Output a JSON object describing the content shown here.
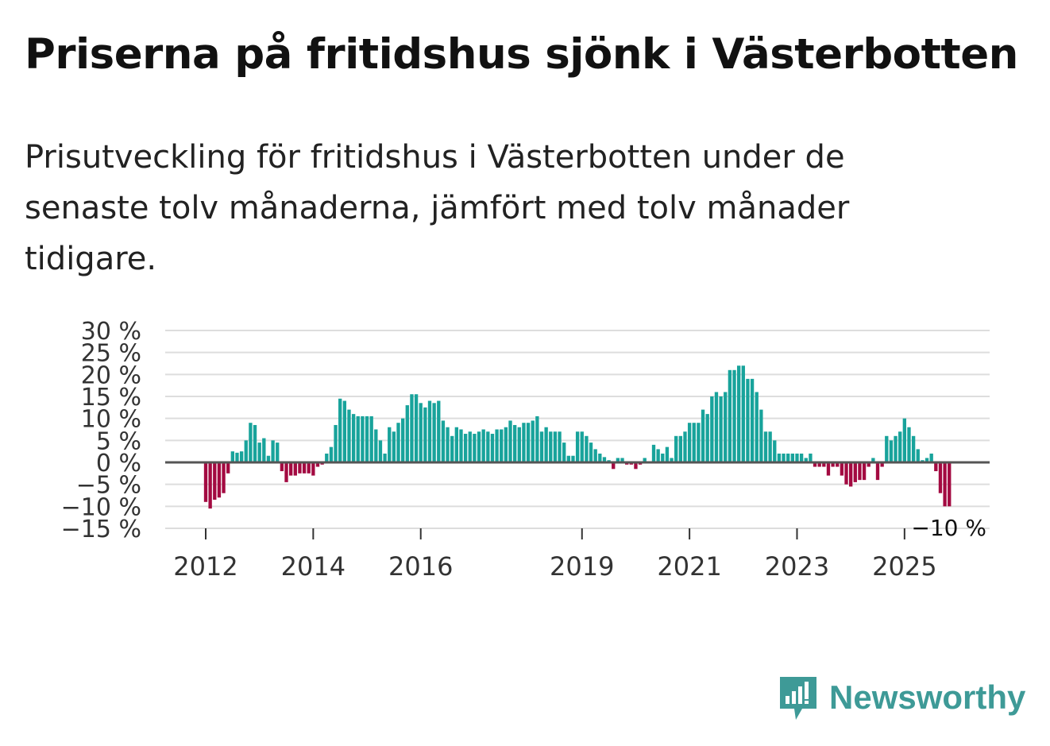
{
  "title": "Priserna på fritidshus sjönk i Västerbotten",
  "subtitle": "Prisutveckling för fritidshus i Västerbotten under de senaste tolv månaderna, jämfört med tolv månader tidigare.",
  "brand": {
    "name": "Newsworthy",
    "icon": "newsworthy-logo-icon"
  },
  "colors": {
    "positive": "#18a39b",
    "negative": "#a30a41",
    "zero_line": "#555555",
    "grid": "#dddddd"
  },
  "chart_data": {
    "type": "bar",
    "title": "Priserna på fritidshus sjönk i Västerbotten",
    "xlabel": "",
    "ylabel": "",
    "ylim": [
      -15,
      30
    ],
    "grid": true,
    "y_ticks": [
      30,
      25,
      20,
      15,
      10,
      5,
      0,
      -5,
      -10,
      -15
    ],
    "y_tick_labels": [
      "30 %",
      "25 %",
      "20 %",
      "15 %",
      "10 %",
      "5 %",
      "0 %",
      "−5 %",
      "−10 %",
      "−15 %"
    ],
    "x_ticks": [
      {
        "label": "2012",
        "index": 0
      },
      {
        "label": "2014",
        "index": 24
      },
      {
        "label": "2016",
        "index": 48
      },
      {
        "label": "2019",
        "index": 84
      },
      {
        "label": "2021",
        "index": 108
      },
      {
        "label": "2023",
        "index": 132
      },
      {
        "label": "2025",
        "index": 156
      }
    ],
    "end_label": "−10 %",
    "series": [
      {
        "name": "Prisutveckling (%)",
        "values": [
          -9,
          -10.5,
          -8.5,
          -8,
          -7,
          -2.5,
          2.5,
          2.2,
          2.5,
          5,
          9,
          8.5,
          4.5,
          5.5,
          1.5,
          5,
          4.5,
          -2,
          -4.5,
          -3,
          -3,
          -2.5,
          -2.5,
          -2.5,
          -3,
          -1,
          -0.5,
          2,
          3.5,
          8.5,
          14.5,
          14,
          12,
          11,
          10.5,
          10.5,
          10.5,
          10.5,
          7.5,
          5,
          2,
          8,
          7,
          9,
          10,
          13,
          15.5,
          15.5,
          13.5,
          12.5,
          14,
          13.5,
          14,
          9.5,
          8,
          6,
          8,
          7.5,
          6.5,
          7,
          6.5,
          7,
          7.5,
          7,
          6.5,
          7.5,
          7.5,
          8,
          9.5,
          8.5,
          8,
          9,
          9,
          9.5,
          10.5,
          7,
          8,
          7,
          7,
          7,
          4.5,
          1.5,
          1.5,
          7,
          7,
          6,
          4.5,
          3,
          2,
          1.2,
          0.5,
          -1.5,
          1,
          1,
          -0.5,
          -0.5,
          -1.5,
          -0.5,
          1,
          0.2,
          4,
          3,
          2,
          3.5,
          1,
          6,
          6,
          7,
          9,
          9,
          9,
          12,
          11,
          15,
          16,
          15,
          16,
          21,
          21,
          22,
          22,
          19,
          19,
          16,
          12,
          7,
          7,
          5,
          2,
          2,
          2,
          2,
          2,
          2,
          1,
          2,
          -1,
          -1,
          -1,
          -3,
          -1,
          -1,
          -3,
          -5,
          -5.5,
          -4.5,
          -4,
          -4,
          -1,
          1,
          -4,
          -1,
          6,
          5,
          6,
          7,
          10,
          8,
          6,
          3,
          0.5,
          1,
          2,
          -2,
          -7,
          -10,
          -10
        ]
      }
    ]
  }
}
